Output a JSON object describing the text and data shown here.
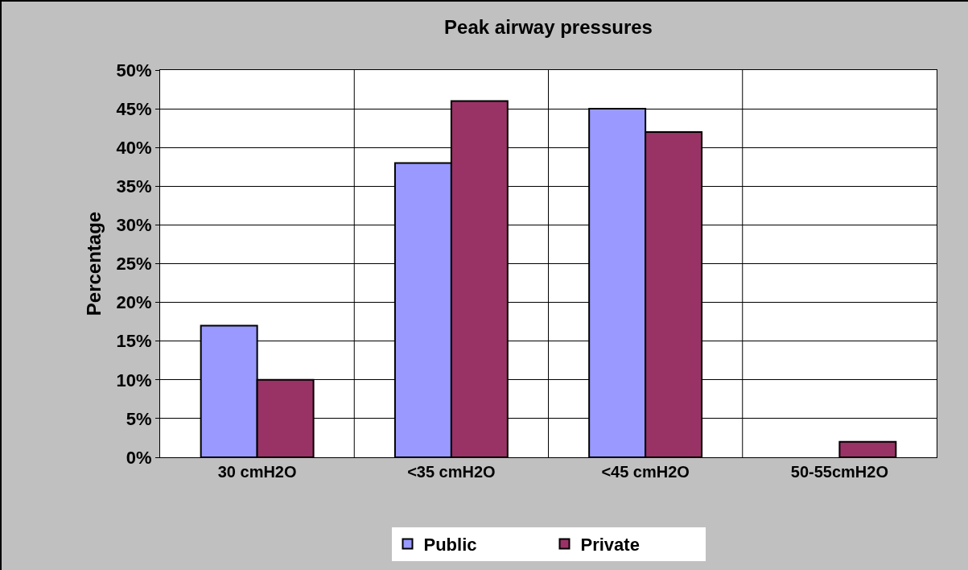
{
  "chart_data": {
    "type": "bar",
    "title": "Peak airway pressures",
    "ylabel": "Percentage",
    "categories": [
      "30 cmH2O",
      "<35 cmH2O",
      "<45 cmH2O",
      "50-55cmH2O"
    ],
    "series": [
      {
        "name": "Public",
        "color": "#9999ff",
        "values": [
          17,
          38,
          45,
          0
        ]
      },
      {
        "name": "Private",
        "color": "#993366",
        "values": [
          10,
          46,
          42,
          2
        ]
      }
    ],
    "ylim": [
      0,
      50
    ],
    "yticks": [
      {
        "value": 0,
        "label": "0%"
      },
      {
        "value": 5,
        "label": "5%"
      },
      {
        "value": 10,
        "label": "10%"
      },
      {
        "value": 15,
        "label": "15%"
      },
      {
        "value": 20,
        "label": "20%"
      },
      {
        "value": 25,
        "label": "25%"
      },
      {
        "value": 30,
        "label": "30%"
      },
      {
        "value": 35,
        "label": "35%"
      },
      {
        "value": 40,
        "label": "40%"
      },
      {
        "value": 45,
        "label": "45%"
      },
      {
        "value": 50,
        "label": "50%"
      }
    ],
    "grid": true,
    "legend": "bottom"
  }
}
